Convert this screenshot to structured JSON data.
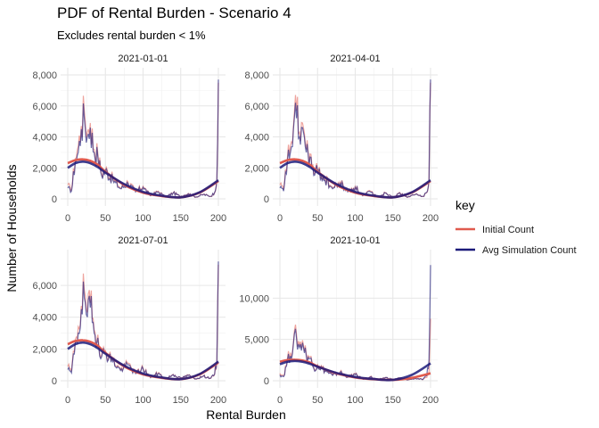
{
  "chart_data": {
    "type": "line",
    "title": "PDF of Rental Burden - Scenario 4",
    "subtitle": "Excludes rental burden < 1%",
    "xlabel": "Rental Burden",
    "ylabel": "Number of Households",
    "legend": {
      "title": "key",
      "position": "right",
      "entries": [
        {
          "name": "Initial Count",
          "color": "#E05A4E"
        },
        {
          "name": "Avg Simulation Count",
          "color": "#1B1A7A"
        }
      ]
    },
    "grid": true,
    "xlim": [
      0,
      200
    ],
    "xticks": [
      0,
      50,
      100,
      150,
      200
    ],
    "panels": [
      {
        "label": "2021-01-01",
        "ylim": [
          0,
          8000
        ],
        "yticks": [
          0,
          2000,
          4000,
          6000,
          8000
        ],
        "ytick_labels": [
          "0",
          "2,000",
          "4,000",
          "6,000",
          "8,000"
        ],
        "smooth_initial_x": [
          0,
          10,
          20,
          30,
          40,
          50,
          75,
          100,
          125,
          150,
          175,
          200
        ],
        "smooth_initial_y": [
          2300,
          2500,
          2550,
          2450,
          2200,
          1750,
          900,
          400,
          180,
          100,
          400,
          1150
        ],
        "smooth_avg_x": [
          0,
          10,
          20,
          30,
          40,
          50,
          75,
          100,
          125,
          150,
          175,
          200
        ],
        "smooth_avg_y": [
          2000,
          2300,
          2400,
          2300,
          2050,
          1700,
          950,
          450,
          200,
          100,
          420,
          1200
        ],
        "raw_x": [
          0,
          5,
          10,
          14,
          18,
          22,
          26,
          30,
          35,
          40,
          45,
          50,
          60,
          70,
          80,
          90,
          100,
          110,
          120,
          130,
          140,
          150,
          160,
          170,
          180,
          190,
          195,
          198,
          200
        ],
        "raw_initial_y": [
          900,
          600,
          2600,
          3400,
          4700,
          5700,
          4300,
          4900,
          3200,
          2900,
          1600,
          1900,
          1300,
          700,
          1100,
          500,
          800,
          200,
          500,
          100,
          400,
          150,
          350,
          100,
          300,
          150,
          400,
          1200,
          7500
        ],
        "raw_avg_y": [
          700,
          500,
          2400,
          3000,
          4500,
          5200,
          4000,
          4600,
          3000,
          2700,
          1500,
          1800,
          1200,
          650,
          1000,
          450,
          750,
          200,
          450,
          120,
          380,
          160,
          330,
          120,
          280,
          160,
          420,
          1300,
          7700
        ]
      },
      {
        "label": "2021-04-01",
        "ylim": [
          0,
          8000
        ],
        "yticks": [
          0,
          2000,
          4000,
          6000,
          8000
        ],
        "ytick_labels": [
          "0",
          "2,000",
          "4,000",
          "6,000",
          "8,000"
        ],
        "smooth_initial_x": [
          0,
          10,
          20,
          30,
          40,
          50,
          75,
          100,
          125,
          150,
          175,
          200
        ],
        "smooth_initial_y": [
          2300,
          2500,
          2550,
          2450,
          2200,
          1750,
          900,
          400,
          180,
          100,
          400,
          1150
        ],
        "smooth_avg_x": [
          0,
          10,
          20,
          30,
          40,
          50,
          75,
          100,
          125,
          150,
          175,
          200
        ],
        "smooth_avg_y": [
          2000,
          2300,
          2400,
          2300,
          2050,
          1700,
          950,
          450,
          200,
          100,
          420,
          1200
        ],
        "raw_x": [
          0,
          5,
          10,
          14,
          18,
          22,
          26,
          30,
          35,
          40,
          45,
          50,
          60,
          70,
          80,
          90,
          100,
          110,
          120,
          130,
          140,
          150,
          160,
          170,
          180,
          190,
          195,
          198,
          200
        ],
        "raw_initial_y": [
          900,
          600,
          2600,
          3400,
          4700,
          5700,
          4300,
          4900,
          3200,
          2900,
          1600,
          1900,
          1300,
          700,
          1100,
          500,
          800,
          200,
          500,
          100,
          400,
          150,
          350,
          100,
          300,
          150,
          400,
          1200,
          7500
        ],
        "raw_avg_y": [
          700,
          500,
          2400,
          3000,
          4500,
          5200,
          4000,
          4600,
          3000,
          2700,
          1500,
          1800,
          1200,
          650,
          1000,
          450,
          750,
          200,
          450,
          120,
          380,
          160,
          330,
          120,
          280,
          160,
          420,
          1300,
          7700
        ]
      },
      {
        "label": "2021-07-01",
        "ylim": [
          0,
          7800
        ],
        "yticks": [
          0,
          2000,
          4000,
          6000
        ],
        "ytick_labels": [
          "0",
          "2,000",
          "4,000",
          "6,000"
        ],
        "smooth_initial_x": [
          0,
          10,
          20,
          30,
          40,
          50,
          75,
          100,
          125,
          150,
          175,
          200
        ],
        "smooth_initial_y": [
          2300,
          2500,
          2550,
          2450,
          2200,
          1750,
          900,
          400,
          180,
          100,
          400,
          1150
        ],
        "smooth_avg_x": [
          0,
          10,
          20,
          30,
          40,
          50,
          75,
          100,
          125,
          150,
          175,
          200
        ],
        "smooth_avg_y": [
          2000,
          2300,
          2400,
          2300,
          2050,
          1700,
          950,
          450,
          200,
          100,
          420,
          1200
        ],
        "raw_x": [
          0,
          5,
          10,
          14,
          18,
          22,
          26,
          30,
          35,
          40,
          45,
          50,
          60,
          70,
          80,
          90,
          100,
          110,
          120,
          130,
          140,
          150,
          160,
          170,
          180,
          190,
          195,
          198,
          200
        ],
        "raw_initial_y": [
          900,
          600,
          2600,
          3400,
          4700,
          5700,
          4300,
          4900,
          3200,
          2900,
          1600,
          1900,
          1300,
          700,
          1100,
          500,
          800,
          200,
          500,
          100,
          400,
          150,
          350,
          100,
          300,
          150,
          400,
          1200,
          7300
        ],
        "raw_avg_y": [
          700,
          500,
          2400,
          3000,
          4500,
          5200,
          4000,
          4600,
          3000,
          2700,
          1500,
          1800,
          1200,
          650,
          1000,
          450,
          750,
          200,
          450,
          120,
          380,
          160,
          330,
          120,
          280,
          160,
          420,
          1300,
          7500
        ]
      },
      {
        "label": "2021-10-01",
        "ylim": [
          0,
          15000
        ],
        "yticks": [
          0,
          5000,
          10000
        ],
        "ytick_labels": [
          "0",
          "5,000",
          "10,000"
        ],
        "smooth_initial_x": [
          0,
          10,
          20,
          30,
          40,
          50,
          75,
          100,
          125,
          150,
          175,
          200
        ],
        "smooth_initial_y": [
          2300,
          2500,
          2550,
          2450,
          2200,
          1750,
          900,
          400,
          180,
          100,
          350,
          900
        ],
        "smooth_avg_x": [
          0,
          10,
          20,
          30,
          40,
          50,
          75,
          100,
          125,
          150,
          175,
          200
        ],
        "smooth_avg_y": [
          2000,
          2300,
          2400,
          2300,
          2050,
          1700,
          950,
          450,
          200,
          100,
          700,
          2100
        ],
        "raw_x": [
          0,
          5,
          10,
          14,
          18,
          22,
          26,
          30,
          35,
          40,
          45,
          50,
          60,
          70,
          80,
          90,
          100,
          110,
          120,
          130,
          140,
          150,
          160,
          170,
          180,
          190,
          195,
          198,
          200
        ],
        "raw_initial_y": [
          900,
          600,
          2600,
          3400,
          4700,
          5700,
          4300,
          4900,
          3200,
          2900,
          1600,
          1900,
          1300,
          700,
          1100,
          500,
          800,
          200,
          500,
          100,
          400,
          150,
          350,
          100,
          300,
          150,
          400,
          1200,
          7500
        ],
        "raw_avg_y": [
          700,
          500,
          2400,
          3000,
          4500,
          5200,
          4000,
          4600,
          3000,
          2700,
          1500,
          1800,
          1200,
          650,
          1000,
          450,
          750,
          200,
          450,
          120,
          380,
          160,
          330,
          120,
          280,
          160,
          600,
          2500,
          14000
        ]
      }
    ]
  }
}
